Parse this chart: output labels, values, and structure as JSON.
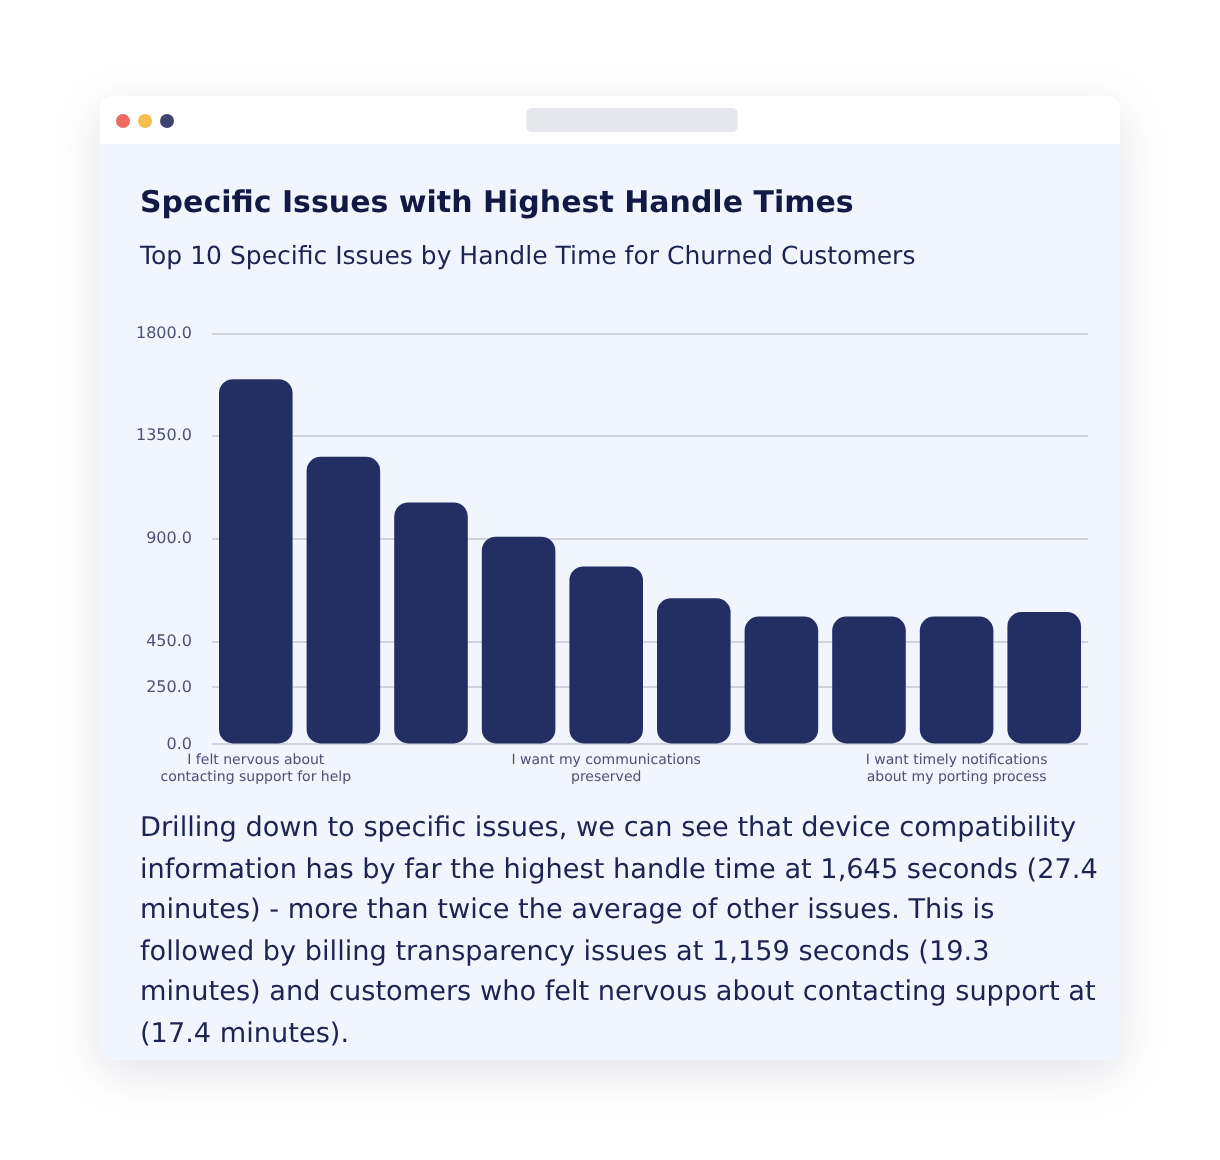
{
  "chart_data": {
    "type": "bar",
    "title": "Specific Issues with Highest Handle Times",
    "subtitle": "Top 10 Specific Issues by Handle Time for Churned Customers",
    "categories": [
      "I felt nervous about contacting support for help",
      null,
      null,
      null,
      "I want my communications preserved",
      null,
      null,
      null,
      "I want timely notifications about my porting process",
      null
    ],
    "values": [
      1600,
      1260,
      1060,
      910,
      780,
      640,
      560,
      560,
      560,
      580
    ],
    "color": "#232f63",
    "ylim": [
      0,
      1800
    ],
    "yticks": [
      {
        "value": 0,
        "label": "0.0"
      },
      {
        "value": 250,
        "label": "250.0"
      },
      {
        "value": 450,
        "label": "450.0"
      },
      {
        "value": 900,
        "label": "900.0"
      },
      {
        "value": 1350,
        "label": "1350.0"
      },
      {
        "value": 1800,
        "label": "1800.0"
      }
    ],
    "grid": "y",
    "annotations": [
      "Drilling down to specific issues, we can see that device compatibility information has by far the highest handle time at 1,645 seconds (27.4 minutes) - more than twice the average of other issues. This is followed by billing transparency issues at 1,159 seconds (19.3 minutes) and customers who felt nervous about contacting support at (17.4 minutes)."
    ]
  }
}
